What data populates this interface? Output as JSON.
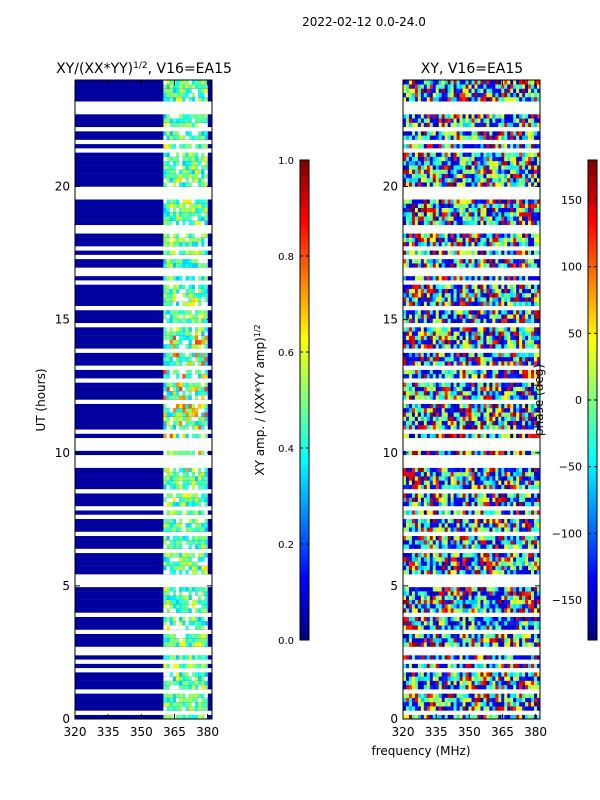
{
  "suptitle": "2022-02-12 0.0-24.0",
  "colors": {
    "jet": [
      "#00007f",
      "#0000ff",
      "#007fff",
      "#00ffff",
      "#7fff7f",
      "#ffff00",
      "#ff7f00",
      "#ff0000",
      "#7f0000"
    ],
    "blank": "#ffffff",
    "axis": "#000000"
  },
  "chart_data": [
    {
      "type": "heatmap",
      "title_main": "XY/(XX*YY)",
      "title_sup": "1/2",
      "title_rest": ", V16=EA15",
      "xlabel": "",
      "ylabel": "UT (hours)",
      "xlim": [
        320,
        382
      ],
      "ylim": [
        0,
        24
      ],
      "xticks": [
        320,
        335,
        350,
        365,
        380
      ],
      "yticks": [
        0,
        5,
        10,
        15,
        20
      ],
      "data_band_mhz": [
        360,
        380
      ],
      "colorbar": {
        "label_main": "XY amp. / (XX*YY amp)",
        "label_sup": "1/2",
        "range": [
          0.0,
          1.0
        ],
        "ticks": [
          "0.0",
          "0.2",
          "0.4",
          "0.6",
          "0.8",
          "1.0"
        ],
        "tick_values": [
          0.0,
          0.2,
          0.4,
          0.6,
          0.8,
          1.0
        ]
      }
    },
    {
      "type": "heatmap",
      "title": "XY, V16=EA15",
      "xlabel": "frequency (MHz)",
      "ylabel": "",
      "xlim": [
        320,
        382
      ],
      "ylim": [
        0,
        24
      ],
      "xticks": [
        320,
        335,
        350,
        365,
        380
      ],
      "yticks": [
        0,
        5,
        10,
        15,
        20
      ],
      "colorbar": {
        "label": "phase (deg)",
        "range": [
          -180,
          180
        ],
        "ticks": [
          "−150",
          "−100",
          "−50",
          "0",
          "50",
          "100",
          "150"
        ],
        "tick_values": [
          -150,
          -100,
          -50,
          0,
          50,
          100,
          150
        ]
      }
    }
  ]
}
